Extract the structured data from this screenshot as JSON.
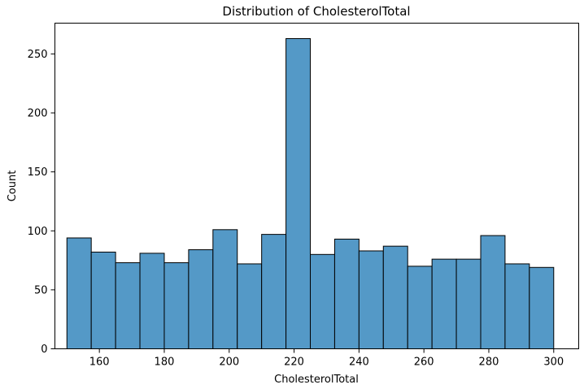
{
  "chart_data": {
    "type": "bar",
    "title": "Distribution of CholesterolTotal",
    "xlabel": "CholesterolTotal",
    "ylabel": "Count",
    "xlim": [
      146.3,
      307.7
    ],
    "ylim": [
      0,
      276.1
    ],
    "grid": false,
    "legend": "none",
    "bar_color": "#5499c7",
    "edge_color": "#000000",
    "bins": [
      {
        "start": 150.0,
        "end": 157.5,
        "count": 94
      },
      {
        "start": 157.5,
        "end": 165.0,
        "count": 82
      },
      {
        "start": 165.0,
        "end": 172.5,
        "count": 73
      },
      {
        "start": 172.5,
        "end": 180.0,
        "count": 81
      },
      {
        "start": 180.0,
        "end": 187.5,
        "count": 73
      },
      {
        "start": 187.5,
        "end": 195.0,
        "count": 84
      },
      {
        "start": 195.0,
        "end": 202.5,
        "count": 101
      },
      {
        "start": 202.5,
        "end": 210.0,
        "count": 72
      },
      {
        "start": 210.0,
        "end": 217.5,
        "count": 97
      },
      {
        "start": 217.5,
        "end": 225.0,
        "count": 263
      },
      {
        "start": 225.0,
        "end": 232.5,
        "count": 80
      },
      {
        "start": 232.5,
        "end": 240.0,
        "count": 93
      },
      {
        "start": 240.0,
        "end": 247.5,
        "count": 83
      },
      {
        "start": 247.5,
        "end": 255.0,
        "count": 87
      },
      {
        "start": 255.0,
        "end": 262.5,
        "count": 70
      },
      {
        "start": 262.5,
        "end": 270.0,
        "count": 76
      },
      {
        "start": 270.0,
        "end": 277.5,
        "count": 76
      },
      {
        "start": 277.5,
        "end": 285.0,
        "count": 96
      },
      {
        "start": 285.0,
        "end": 292.5,
        "count": 72
      },
      {
        "start": 292.5,
        "end": 300.0,
        "count": 69
      }
    ],
    "x_ticks": [
      160,
      180,
      200,
      220,
      240,
      260,
      280,
      300
    ],
    "y_ticks": [
      0,
      50,
      100,
      150,
      200,
      250
    ]
  }
}
